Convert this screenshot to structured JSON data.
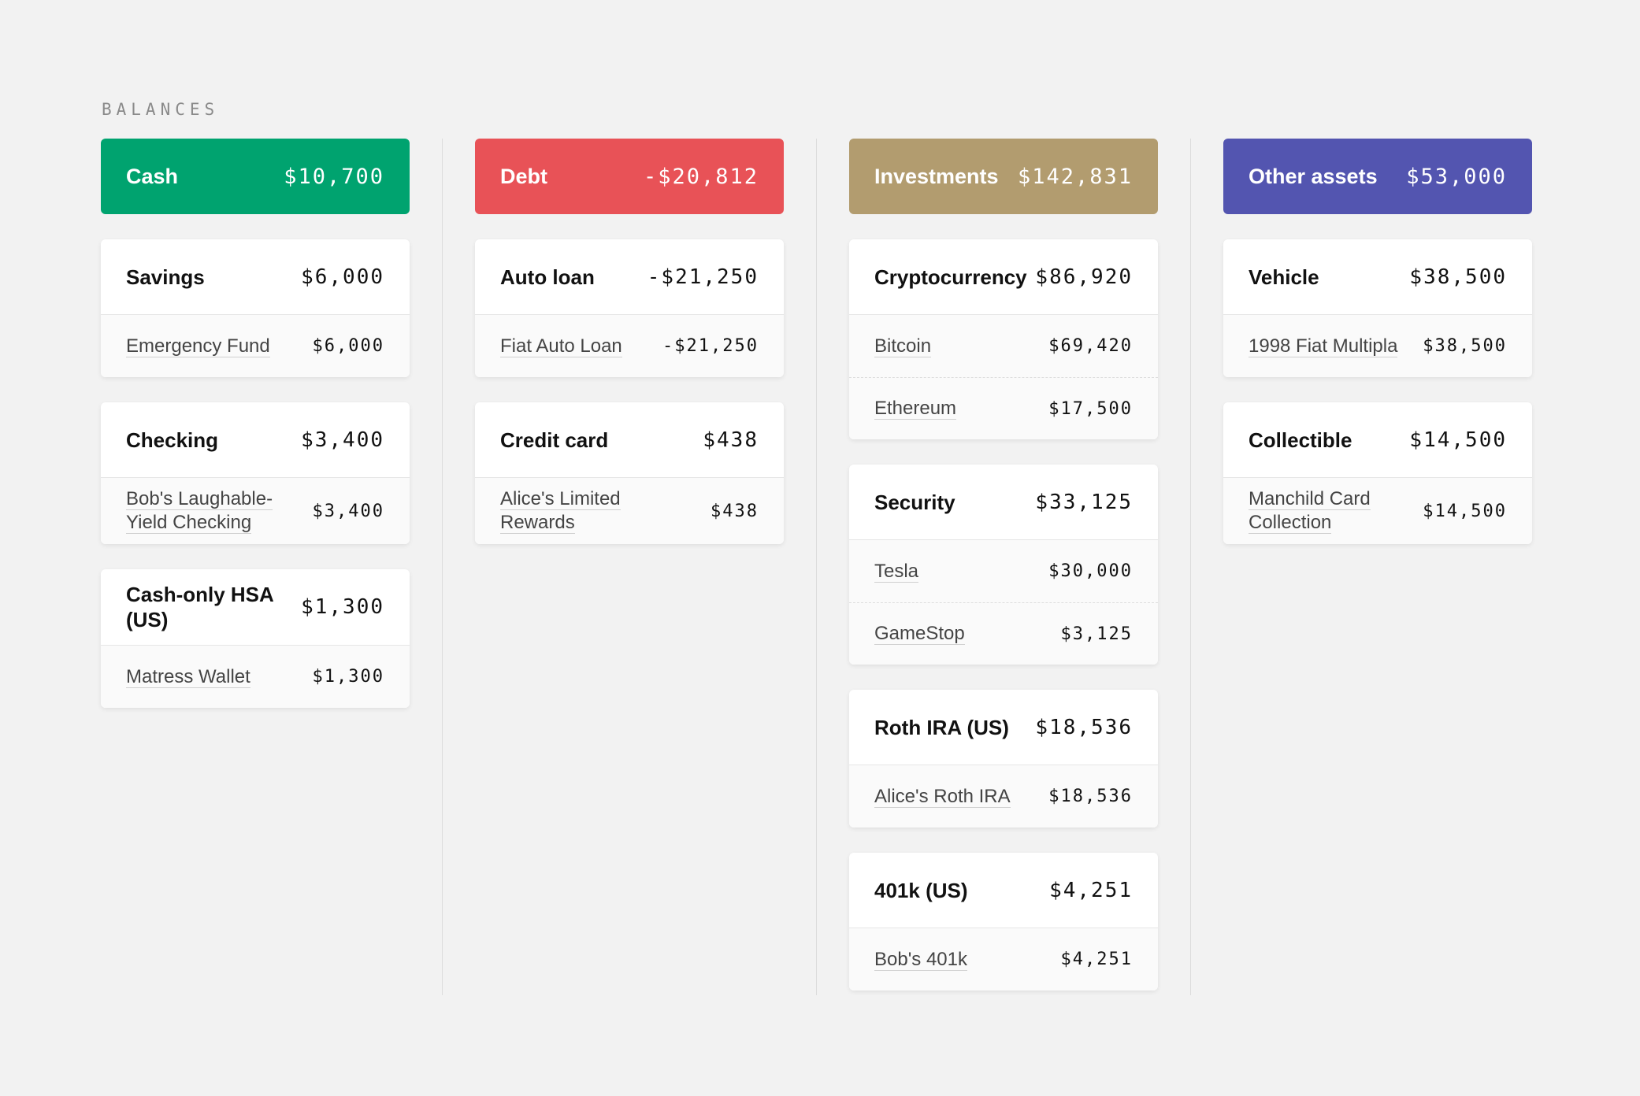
{
  "section_label": "BALANCES",
  "columns": [
    {
      "title": "Cash",
      "total": "$10,700",
      "color": "#00a36f",
      "groups": [
        {
          "name": "Savings",
          "amount": "$6,000",
          "accounts": [
            {
              "name": "Emergency Fund",
              "amount": "$6,000"
            }
          ]
        },
        {
          "name": "Checking",
          "amount": "$3,400",
          "accounts": [
            {
              "name": "Bob's Laughable-Yield Checking",
              "amount": "$3,400"
            }
          ]
        },
        {
          "name": "Cash-only HSA (US)",
          "amount": "$1,300",
          "accounts": [
            {
              "name": "Matress Wallet",
              "amount": "$1,300"
            }
          ]
        }
      ]
    },
    {
      "title": "Debt",
      "total": "-$20,812",
      "color": "#e85257",
      "groups": [
        {
          "name": "Auto loan",
          "amount": "-$21,250",
          "accounts": [
            {
              "name": "Fiat Auto Loan",
              "amount": "-$21,250"
            }
          ]
        },
        {
          "name": "Credit card",
          "amount": "$438",
          "accounts": [
            {
              "name": "Alice's Limited Rewards",
              "amount": "$438"
            }
          ]
        }
      ]
    },
    {
      "title": "Investments",
      "total": "$142,831",
      "color": "#b29c6f",
      "groups": [
        {
          "name": "Cryptocurrency",
          "amount": "$86,920",
          "accounts": [
            {
              "name": "Bitcoin",
              "amount": "$69,420"
            },
            {
              "name": "Ethereum",
              "amount": "$17,500"
            }
          ]
        },
        {
          "name": "Security",
          "amount": "$33,125",
          "accounts": [
            {
              "name": "Tesla",
              "amount": "$30,000"
            },
            {
              "name": "GameStop",
              "amount": "$3,125"
            }
          ]
        },
        {
          "name": "Roth IRA (US)",
          "amount": "$18,536",
          "accounts": [
            {
              "name": "Alice's Roth IRA",
              "amount": "$18,536"
            }
          ]
        },
        {
          "name": "401k (US)",
          "amount": "$4,251",
          "accounts": [
            {
              "name": "Bob's 401k",
              "amount": "$4,251"
            }
          ]
        }
      ]
    },
    {
      "title": "Other assets",
      "total": "$53,000",
      "color": "#5355b0",
      "groups": [
        {
          "name": "Vehicle",
          "amount": "$38,500",
          "accounts": [
            {
              "name": "1998 Fiat Multipla",
              "amount": "$38,500"
            }
          ]
        },
        {
          "name": "Collectible",
          "amount": "$14,500",
          "accounts": [
            {
              "name": "Manchild Card Collection",
              "amount": "$14,500"
            }
          ]
        }
      ]
    }
  ]
}
